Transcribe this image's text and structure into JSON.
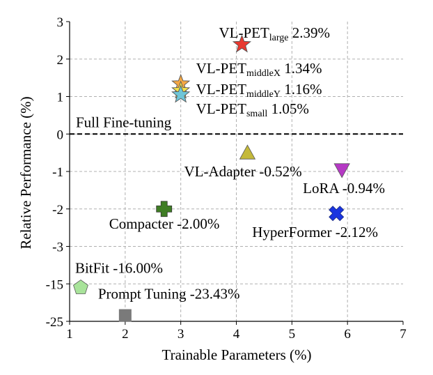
{
  "chart_data": {
    "type": "scatter",
    "xlabel": "Trainable Parameters (%)",
    "ylabel": "Relative Performance (%)",
    "xlim": [
      1,
      7
    ],
    "x_ticks": [
      "1",
      "2",
      "3",
      "4",
      "5",
      "6",
      "7"
    ],
    "y_tick_labels": [
      "-25",
      "-15",
      "-3",
      "-2",
      "-1",
      "0",
      "1",
      "2",
      "3"
    ],
    "y_axis_note": "non-linear (broken) y-axis: tick labels are evenly spaced",
    "grid": true,
    "reference_line": {
      "label": "Full Fine-tuning",
      "y": 0,
      "style": "dashed",
      "color": "#000000"
    },
    "points": [
      {
        "label_main": "VL-PET",
        "label_sub": "large",
        "label_value": "2.39%",
        "x": 4.1,
        "y": 2.39,
        "marker": "star",
        "color": "#e8382f"
      },
      {
        "label_main": "VL-PET",
        "label_sub": "middleX",
        "label_value": "1.34%",
        "x": 3.0,
        "y": 1.34,
        "marker": "star",
        "color": "#f5a742"
      },
      {
        "label_main": "VL-PET",
        "label_sub": "middleY",
        "label_value": "1.16%",
        "x": 3.0,
        "y": 1.16,
        "marker": "star",
        "color": "#f2e04a"
      },
      {
        "label_main": "VL-PET",
        "label_sub": "small",
        "label_value": "1.05%",
        "x": 3.0,
        "y": 1.05,
        "marker": "star",
        "color": "#6fc6d8"
      },
      {
        "label_main": "VL-Adapter -0.52%",
        "label_sub": "",
        "label_value": "",
        "x": 4.2,
        "y": -0.52,
        "marker": "triangle-up",
        "color": "#c4b93a"
      },
      {
        "label_main": "LoRA -0.94%",
        "label_sub": "",
        "label_value": "",
        "x": 5.9,
        "y": -0.94,
        "marker": "triangle-down",
        "color": "#b539c4"
      },
      {
        "label_main": "Compacter -2.00%",
        "label_sub": "",
        "label_value": "",
        "x": 2.7,
        "y": -2.0,
        "marker": "plus",
        "color": "#3f7d24"
      },
      {
        "label_main": "HyperFormer -2.12%",
        "label_sub": "",
        "label_value": "",
        "x": 5.8,
        "y": -2.12,
        "marker": "x",
        "color": "#1a35e0"
      },
      {
        "label_main": "BitFit -16.00%",
        "label_sub": "",
        "label_value": "",
        "x": 1.2,
        "y": -16.0,
        "marker": "pentagon",
        "color": "#a8e39a"
      },
      {
        "label_main": "Prompt Tuning -23.43%",
        "label_sub": "",
        "label_value": "",
        "x": 2.0,
        "y": -23.43,
        "marker": "square",
        "color": "#7a7a7a"
      }
    ]
  }
}
